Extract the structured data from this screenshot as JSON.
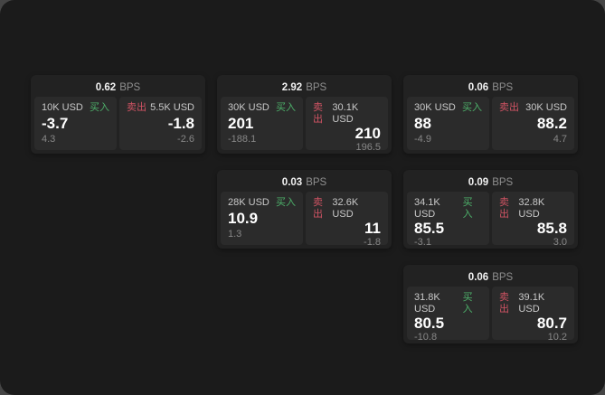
{
  "page": {
    "surface_color": "#1b1b1b",
    "backdrop_color": "#454545",
    "card_color": "#222222",
    "panel_color": "#2b2b2b"
  },
  "labels": {
    "bps_unit": "BPS",
    "buy": "买入",
    "sell": "卖出"
  },
  "colors": {
    "buy_accent": "#4db06a",
    "sell_accent": "#cf5363",
    "price_text": "#ffffff",
    "muted_text": "#878787"
  },
  "cards": [
    {
      "bps": "0.62",
      "buy": {
        "size": "10K USD",
        "price": "-3.7",
        "delta": "4.3"
      },
      "sell": {
        "size": "5.5K USD",
        "price": "-1.8",
        "delta": "-2.6"
      }
    },
    {
      "bps": "2.92",
      "buy": {
        "size": "30K USD",
        "price": "201",
        "delta": "-188.1"
      },
      "sell": {
        "size": "30.1K USD",
        "price": "210",
        "delta": "196.5"
      }
    },
    {
      "bps": "0.06",
      "buy": {
        "size": "30K USD",
        "price": "88",
        "delta": "-4.9"
      },
      "sell": {
        "size": "30K USD",
        "price": "88.2",
        "delta": "4.7"
      }
    },
    {
      "bps": "0.03",
      "buy": {
        "size": "28K USD",
        "price": "10.9",
        "delta": "1.3"
      },
      "sell": {
        "size": "32.6K USD",
        "price": "11",
        "delta": "-1.8"
      }
    },
    {
      "bps": "0.09",
      "buy": {
        "size": "34.1K USD",
        "price": "85.5",
        "delta": "-3.1"
      },
      "sell": {
        "size": "32.8K USD",
        "price": "85.8",
        "delta": "3.0"
      }
    },
    {
      "bps": "0.06",
      "buy": {
        "size": "31.8K USD",
        "price": "80.5",
        "delta": "-10.8"
      },
      "sell": {
        "size": "39.1K USD",
        "price": "80.7",
        "delta": "10.2"
      }
    }
  ]
}
